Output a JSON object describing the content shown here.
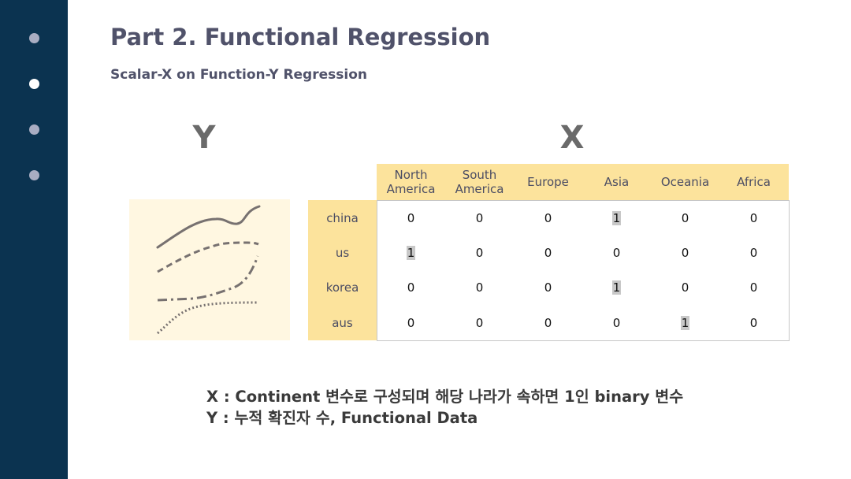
{
  "sidebar": {
    "nav_dots": [
      {
        "label": "slide-1",
        "active": false
      },
      {
        "label": "slide-2",
        "active": true
      },
      {
        "label": "slide-3",
        "active": false
      },
      {
        "label": "slide-4",
        "active": false
      }
    ]
  },
  "header": {
    "title": "Part 2. Functional Regression",
    "subtitle": "Scalar-X on Function-Y Regression"
  },
  "labels": {
    "y": "Y",
    "x": "X"
  },
  "matrix": {
    "columns": [
      [
        "North",
        "America"
      ],
      [
        "South",
        "America"
      ],
      [
        "Europe"
      ],
      [
        "Asia"
      ],
      [
        "Oceania"
      ],
      [
        "Africa"
      ]
    ],
    "rows": [
      {
        "label": "china",
        "values": [
          "0",
          "0",
          "0",
          "1",
          "0",
          "0"
        ]
      },
      {
        "label": "us",
        "values": [
          "1",
          "0",
          "0",
          "0",
          "0",
          "0"
        ]
      },
      {
        "label": "korea",
        "values": [
          "0",
          "0",
          "0",
          "1",
          "0",
          "0"
        ]
      },
      {
        "label": "aus",
        "values": [
          "0",
          "0",
          "0",
          "0",
          "1",
          "0"
        ]
      }
    ]
  },
  "notes": {
    "x_note": "X : Continent 변수로 구성되며 해당 나라가 속하면 1인 binary 변수",
    "y_note": "Y : 누적 확진자 수, Functional Data"
  },
  "colors": {
    "sidebar": "#0b3350",
    "header_band": "#fce39c",
    "y_box": "#fff7e1",
    "curve": "#777170",
    "highlight": "#c8c8c8"
  }
}
